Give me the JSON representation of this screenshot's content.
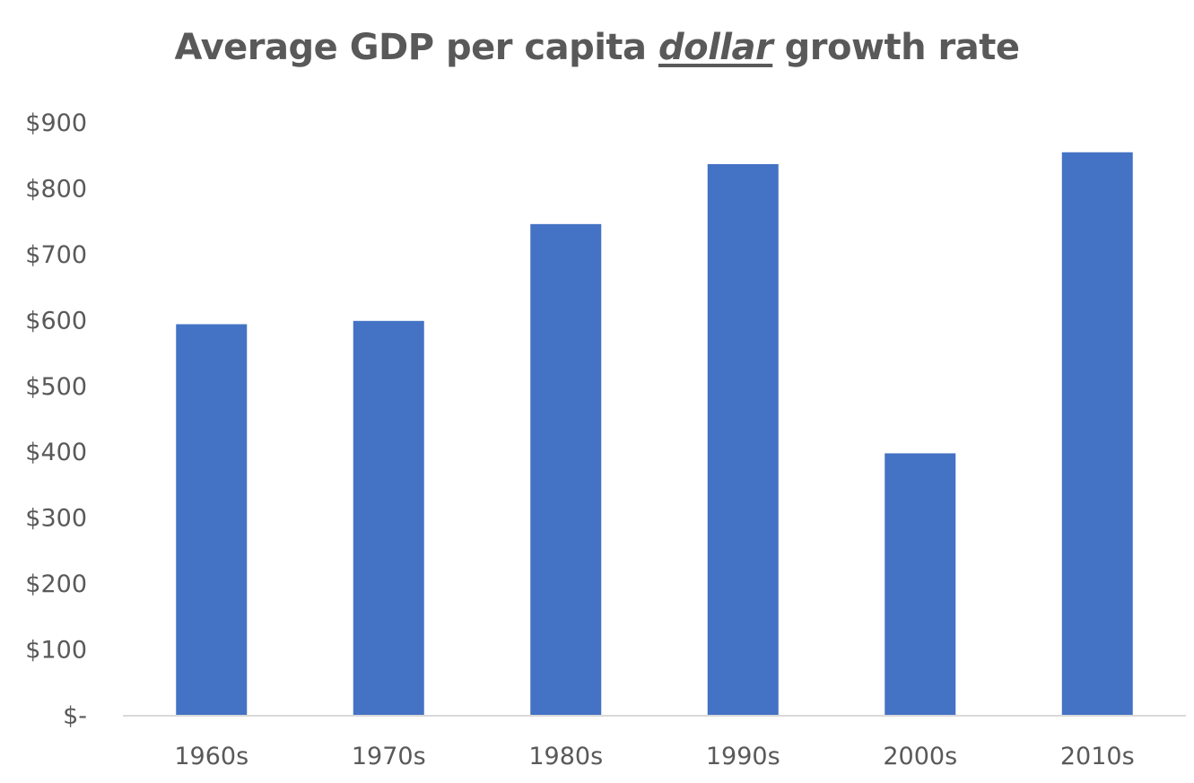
{
  "chart_data": {
    "type": "bar",
    "title_parts": {
      "before": "Average GDP per capita ",
      "emphasis": "dollar",
      "after": " growth rate"
    },
    "categories": [
      "1960s",
      "1970s",
      "1980s",
      "1990s",
      "2000s",
      "2010s"
    ],
    "values": [
      593,
      598,
      745,
      836,
      397,
      854
    ],
    "ylim": [
      0,
      900
    ],
    "yticks": [
      0,
      100,
      200,
      300,
      400,
      500,
      600,
      700,
      800,
      900
    ],
    "ytick_labels": [
      "$-",
      "$100",
      "$200",
      "$300",
      "$400",
      "$500",
      "$600",
      "$700",
      "$800",
      "$900"
    ],
    "xlabel": "",
    "ylabel": "",
    "grid": false,
    "legend": "none",
    "colors": {
      "bar": "#4472c4",
      "axis": "#d9d9d9",
      "text": "#595959"
    }
  }
}
